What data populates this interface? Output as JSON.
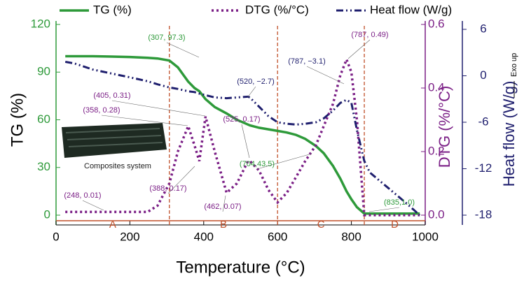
{
  "chart_data": {
    "type": "line",
    "xlabel": "Temperature (°C)",
    "ylabel": "TG (%)",
    "y2label": "DTG (%/°C)",
    "y3label": "Heat flow (W/g)",
    "exo_label": "Exo up",
    "inset_label": "Composites system",
    "x": [
      25,
      50,
      100,
      150,
      200,
      248,
      275,
      307,
      330,
      358,
      375,
      388,
      405,
      430,
      462,
      490,
      520,
      525,
      550,
      575,
      600,
      625,
      650,
      675,
      704,
      725,
      750,
      770,
      787,
      800,
      815,
      835,
      850,
      900,
      950,
      985
    ],
    "series": [
      {
        "name": "TG (%)",
        "color": "#2e9a3a",
        "axis": "y",
        "values": [
          100,
          100,
          100,
          99.8,
          99.5,
          99,
          98.6,
          97.3,
          93,
          84,
          80,
          78,
          73,
          68,
          64,
          60,
          57,
          56.5,
          55,
          54,
          53,
          52,
          50.5,
          48,
          43.5,
          39,
          31,
          23,
          15,
          10,
          5,
          1,
          1,
          1,
          1,
          1
        ]
      },
      {
        "name": "DTG (%/°C)",
        "color": "#7b1f86",
        "axis": "y2",
        "values": [
          0.01,
          0.01,
          0.01,
          0.01,
          0.01,
          0.01,
          0.03,
          0.1,
          0.2,
          0.28,
          0.22,
          0.17,
          0.31,
          0.2,
          0.07,
          0.1,
          0.17,
          0.17,
          0.14,
          0.08,
          0.04,
          0.07,
          0.12,
          0.17,
          0.22,
          0.28,
          0.35,
          0.44,
          0.49,
          0.45,
          0.3,
          0,
          0,
          0,
          0,
          0
        ]
      },
      {
        "name": "Heat flow (W/g)",
        "color": "#1f1f6e",
        "axis": "y3",
        "values": [
          1.8,
          1.6,
          0.8,
          0.3,
          -0.2,
          -0.7,
          -1.1,
          -1.5,
          -1.7,
          -2,
          -2.1,
          -2.3,
          -2.5,
          -2.8,
          -2.9,
          -2.8,
          -2.7,
          -2.8,
          -4,
          -5.2,
          -6,
          -6.2,
          -6.3,
          -6.2,
          -6,
          -5.5,
          -4.5,
          -3.5,
          -3.1,
          -3.5,
          -7,
          -11,
          -12.5,
          -14.5,
          -16.5,
          -18
        ]
      }
    ],
    "xlim": [
      0,
      1000
    ],
    "xticks": [
      0,
      200,
      400,
      600,
      800,
      1000
    ],
    "ylim": [
      0,
      120
    ],
    "yticks": [
      0,
      30,
      60,
      90,
      120
    ],
    "y2lim": [
      0,
      0.6
    ],
    "y2ticks": [
      {
        "value": 0,
        "label": "0.0"
      },
      0.2,
      0.4,
      0.6
    ],
    "y3lim": [
      -18,
      6
    ],
    "y3ticks": [
      6,
      0,
      -6,
      -12,
      -18
    ],
    "vlines": [
      307,
      600,
      835
    ],
    "regions": [
      "A",
      "B",
      "C",
      "D"
    ],
    "annotations": [
      "(307, 97.3)",
      "(405, 0.31)",
      "(358, 0.28)",
      "(248, 0.01)",
      "(388, 0.17)",
      "(462, 0.07)",
      "(525, 0.17)",
      "(520, −2.7)",
      "(787, 0.49)",
      "(787, −3.1)",
      "(704,43.5)",
      "(835,1.0)"
    ]
  }
}
